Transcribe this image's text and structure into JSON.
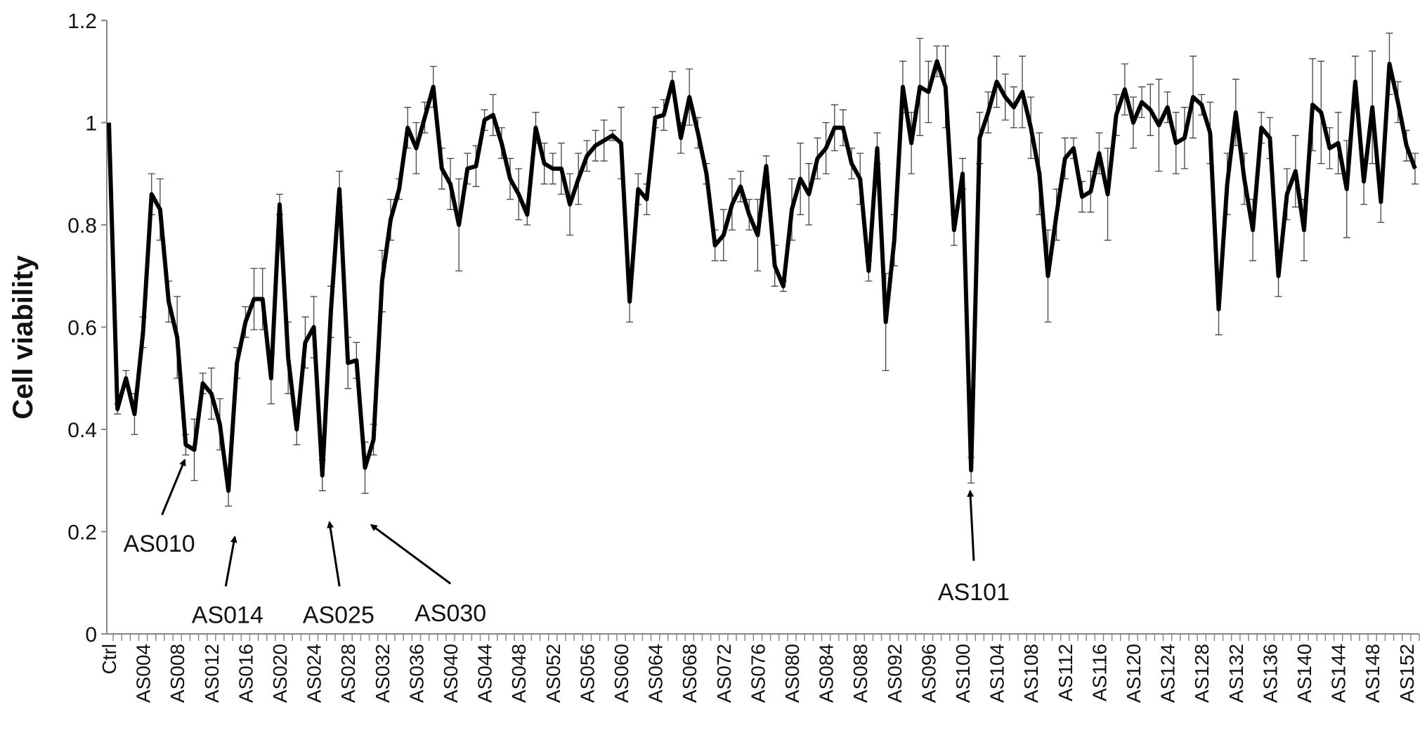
{
  "chart_data": {
    "type": "line",
    "y_label": "Cell viability",
    "categories": [
      "Ctrl",
      null,
      null,
      null,
      "AS004",
      null,
      null,
      null,
      "AS008",
      null,
      null,
      null,
      "AS012",
      null,
      null,
      null,
      "AS016",
      null,
      null,
      null,
      "AS020",
      null,
      null,
      null,
      "AS024",
      null,
      null,
      null,
      "AS028",
      null,
      null,
      null,
      "AS032",
      null,
      null,
      null,
      "AS036",
      null,
      null,
      null,
      "AS040",
      null,
      null,
      null,
      "AS044",
      null,
      null,
      null,
      "AS048",
      null,
      null,
      null,
      "AS052",
      null,
      null,
      null,
      "AS056",
      null,
      null,
      null,
      "AS060",
      null,
      null,
      null,
      "AS064",
      null,
      null,
      null,
      "AS068",
      null,
      null,
      null,
      "AS072",
      null,
      null,
      null,
      "AS076",
      null,
      null,
      null,
      "AS080",
      null,
      null,
      null,
      "AS084",
      null,
      null,
      null,
      "AS088",
      null,
      null,
      null,
      "AS092",
      null,
      null,
      null,
      "AS096",
      null,
      null,
      null,
      "AS100",
      null,
      null,
      null,
      "AS104",
      null,
      null,
      null,
      "AS108",
      null,
      null,
      null,
      "AS112",
      null,
      null,
      null,
      "AS116",
      null,
      null,
      null,
      "AS120",
      null,
      null,
      null,
      "AS124",
      null,
      null,
      null,
      "AS128",
      null,
      null,
      null,
      "AS132",
      null,
      null,
      null,
      "AS136",
      null,
      null,
      null,
      "AS140",
      null,
      null,
      null,
      "AS144",
      null,
      null,
      null,
      "AS148",
      null,
      null,
      null,
      "AS152",
      null
    ],
    "values": [
      1.0,
      0.44,
      0.5,
      0.43,
      0.59,
      0.86,
      0.83,
      0.65,
      0.58,
      0.37,
      0.36,
      0.49,
      0.47,
      0.41,
      0.28,
      0.53,
      0.61,
      0.655,
      0.655,
      0.5,
      0.84,
      0.54,
      0.4,
      0.57,
      0.6,
      0.31,
      0.63,
      0.87,
      0.53,
      0.535,
      0.325,
      0.38,
      0.69,
      0.81,
      0.87,
      0.99,
      0.95,
      1.01,
      1.07,
      0.91,
      0.88,
      0.8,
      0.91,
      0.915,
      1.005,
      1.015,
      0.96,
      0.89,
      0.86,
      0.82,
      0.99,
      0.92,
      0.91,
      0.91,
      0.84,
      0.89,
      0.935,
      0.955,
      0.965,
      0.975,
      0.96,
      0.65,
      0.87,
      0.85,
      1.01,
      1.015,
      1.08,
      0.97,
      1.05,
      0.98,
      0.9,
      0.76,
      0.78,
      0.84,
      0.875,
      0.82,
      0.78,
      0.915,
      0.72,
      0.68,
      0.83,
      0.89,
      0.86,
      0.93,
      0.95,
      0.99,
      0.99,
      0.92,
      0.89,
      0.71,
      0.95,
      0.61,
      0.77,
      1.07,
      0.96,
      1.07,
      1.06,
      1.12,
      1.07,
      0.79,
      0.9,
      0.32,
      0.97,
      1.02,
      1.08,
      1.05,
      1.03,
      1.06,
      0.99,
      0.9,
      0.7,
      0.82,
      0.93,
      0.95,
      0.855,
      0.865,
      0.94,
      0.86,
      1.015,
      1.065,
      1.0,
      1.04,
      1.025,
      0.995,
      1.03,
      0.96,
      0.97,
      1.05,
      1.035,
      0.98,
      0.635,
      0.88,
      1.02,
      0.89,
      0.79,
      0.99,
      0.97,
      0.7,
      0.86,
      0.905,
      0.79,
      1.035,
      1.02,
      0.95,
      0.96,
      0.87,
      1.08,
      0.885,
      1.03,
      0.845,
      1.115,
      1.04,
      0.955,
      0.91
    ],
    "errors": [
      0.0,
      0.01,
      0.015,
      0.04,
      0.03,
      0.04,
      0.06,
      0.04,
      0.08,
      0.02,
      0.06,
      0.02,
      0.05,
      0.05,
      0.03,
      0.03,
      0.03,
      0.06,
      0.06,
      0.05,
      0.02,
      0.07,
      0.03,
      0.05,
      0.06,
      0.03,
      0.05,
      0.035,
      0.05,
      0.035,
      0.05,
      0.03,
      0.06,
      0.04,
      0.02,
      0.04,
      0.05,
      0.03,
      0.04,
      0.04,
      0.05,
      0.09,
      0.03,
      0.04,
      0.02,
      0.04,
      0.03,
      0.04,
      0.05,
      0.02,
      0.03,
      0.04,
      0.03,
      0.05,
      0.06,
      0.05,
      0.03,
      0.03,
      0.04,
      0.01,
      0.07,
      0.04,
      0.03,
      0.03,
      0.02,
      0.03,
      0.02,
      0.03,
      0.055,
      0.03,
      0.02,
      0.03,
      0.05,
      0.05,
      0.03,
      0.03,
      0.07,
      0.02,
      0.04,
      0.01,
      0.06,
      0.07,
      0.06,
      0.04,
      0.05,
      0.045,
      0.035,
      0.03,
      0.05,
      0.02,
      0.03,
      0.095,
      0.05,
      0.05,
      0.06,
      0.095,
      0.06,
      0.03,
      0.08,
      0.03,
      0.03,
      0.025,
      0.05,
      0.04,
      0.05,
      0.045,
      0.04,
      0.07,
      0.06,
      0.08,
      0.09,
      0.05,
      0.04,
      0.02,
      0.03,
      0.04,
      0.04,
      0.09,
      0.04,
      0.05,
      0.05,
      0.03,
      0.05,
      0.09,
      0.03,
      0.06,
      0.06,
      0.08,
      0.02,
      0.06,
      0.05,
      0.06,
      0.065,
      0.05,
      0.06,
      0.03,
      0.04,
      0.04,
      0.05,
      0.07,
      0.06,
      0.09,
      0.1,
      0.04,
      0.06,
      0.095,
      0.05,
      0.045,
      0.11,
      0.04,
      0.06,
      0.04,
      0.03,
      0.03
    ],
    "ylim": [
      0,
      1.2
    ],
    "yticks": [
      0,
      0.2,
      0.4,
      0.6,
      0.8,
      1,
      1.2
    ],
    "color": "#000000",
    "grid": false,
    "annotations": [
      "AS010",
      "AS014",
      "AS025",
      "AS030",
      "AS101"
    ]
  }
}
